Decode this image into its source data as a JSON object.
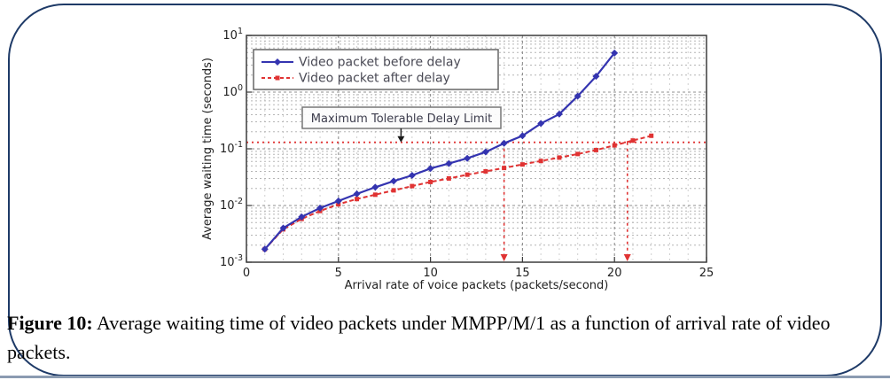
{
  "figure": {
    "caption_label": "Figure 10:",
    "caption_text": "Average waiting time of video packets under MMPP/M/1 as a function of arrival rate of video packets."
  },
  "colors": {
    "frame_border": "#1e3a67",
    "bottom_rule": "#8b9bb1",
    "grid_major": "#8f8f8f",
    "grid_minor": "#b5b5b5",
    "axis_box": "#3c3c3c",
    "annotation_text": "#3d3d4d",
    "legend_text": "#4a4a55"
  },
  "chart_data": {
    "type": "line",
    "title": "",
    "xlabel": "Arrival rate of voice packets (packets/second)",
    "ylabel": "Average waiting time (seconds)",
    "x_axis": {
      "range": [
        0,
        25
      ],
      "ticks": [
        0,
        5,
        10,
        15,
        20,
        25
      ]
    },
    "y_axis": {
      "scale": "log",
      "range_exponents": [
        -3,
        1
      ],
      "tick_exponents": [
        "1",
        "0",
        "-1",
        "-2",
        "-3"
      ]
    },
    "grid": {
      "major": true,
      "minor": true,
      "style": "dashed"
    },
    "legend": {
      "position": "top-left"
    },
    "annotation": {
      "text": "Maximum Tolerable Delay Limit",
      "arrow_to": {
        "x": 8.4,
        "y": 0.13
      }
    },
    "limit_line": {
      "y": 0.13,
      "color": "#e03333",
      "style": "dotted"
    },
    "crossing_markers": [
      {
        "x": 14.0,
        "color": "#e03333"
      },
      {
        "x": 20.7,
        "color": "#e03333"
      }
    ],
    "series": [
      {
        "name": "Video packet after delay",
        "color": "#e03333",
        "line": "dashed",
        "marker": "square",
        "x": [
          1,
          2,
          3,
          4,
          5,
          6,
          7,
          8,
          9,
          10,
          11,
          12,
          13,
          14,
          15,
          16,
          17,
          18,
          19,
          20,
          21,
          22
        ],
        "y": [
          0.0017,
          0.0038,
          0.0058,
          0.008,
          0.0105,
          0.013,
          0.0155,
          0.0185,
          0.022,
          0.026,
          0.03,
          0.035,
          0.04,
          0.046,
          0.053,
          0.061,
          0.07,
          0.081,
          0.095,
          0.115,
          0.14,
          0.17
        ]
      },
      {
        "name": "Video packet before delay",
        "color": "#3434b0",
        "line": "solid",
        "marker": "diamond",
        "x": [
          1,
          2,
          3,
          4,
          5,
          6,
          7,
          8,
          9,
          10,
          11,
          12,
          13,
          14,
          15,
          16,
          17,
          18,
          19,
          20
        ],
        "y": [
          0.0017,
          0.004,
          0.0063,
          0.009,
          0.012,
          0.016,
          0.021,
          0.027,
          0.034,
          0.045,
          0.055,
          0.068,
          0.088,
          0.125,
          0.17,
          0.28,
          0.41,
          0.85,
          1.9,
          4.9
        ]
      }
    ]
  }
}
